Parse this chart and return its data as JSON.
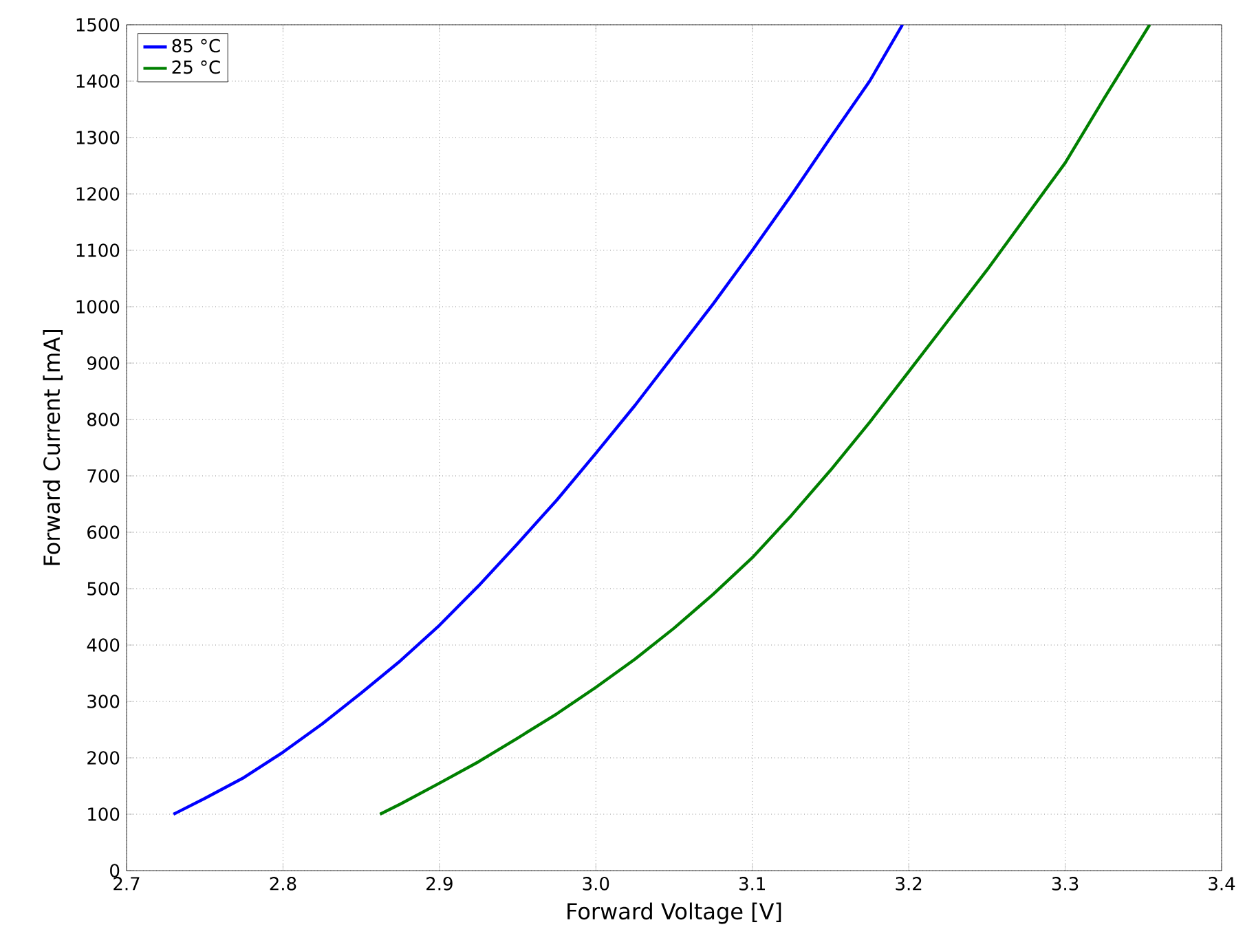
{
  "chart_data": {
    "type": "line",
    "xlabel": "Forward Voltage [V]",
    "ylabel": "Forward Current [mA]",
    "xlim": [
      2.7,
      3.4
    ],
    "ylim": [
      0,
      1500
    ],
    "xticks": [
      2.7,
      2.8,
      2.9,
      {
        "value": 3.0,
        "label": "3.0"
      },
      3.1,
      3.2,
      3.3,
      3.4
    ],
    "yticks": [
      0,
      100,
      200,
      300,
      400,
      500,
      600,
      700,
      800,
      900,
      1000,
      1100,
      1200,
      1300,
      1400,
      1500
    ],
    "grid": true,
    "legend": "top left",
    "line_style": "solid",
    "marker": "none",
    "series": [
      {
        "name": "85 °C",
        "color": "#0000ff",
        "x": [
          2.73,
          2.75,
          2.775,
          2.8,
          2.825,
          2.85,
          2.875,
          2.9,
          2.925,
          2.95,
          2.975,
          3.0,
          3.025,
          3.05,
          3.075,
          3.1,
          3.125,
          3.15,
          3.175,
          3.196
        ],
        "values": [
          100,
          128,
          165,
          210,
          260,
          315,
          372,
          435,
          505,
          580,
          657,
          740,
          825,
          915,
          1005,
          1100,
          1198,
          1300,
          1400,
          1500
        ]
      },
      {
        "name": "25 °C",
        "color": "#008000",
        "x": [
          2.862,
          2.875,
          2.9,
          2.925,
          2.95,
          2.975,
          3.0,
          3.025,
          3.05,
          3.075,
          3.1,
          3.125,
          3.15,
          3.175,
          3.2,
          3.225,
          3.25,
          3.275,
          3.3,
          3.325,
          3.354
        ],
        "values": [
          100,
          118,
          155,
          193,
          235,
          278,
          325,
          375,
          430,
          490,
          555,
          630,
          710,
          795,
          885,
          975,
          1065,
          1160,
          1255,
          1370,
          1500
        ]
      }
    ]
  }
}
